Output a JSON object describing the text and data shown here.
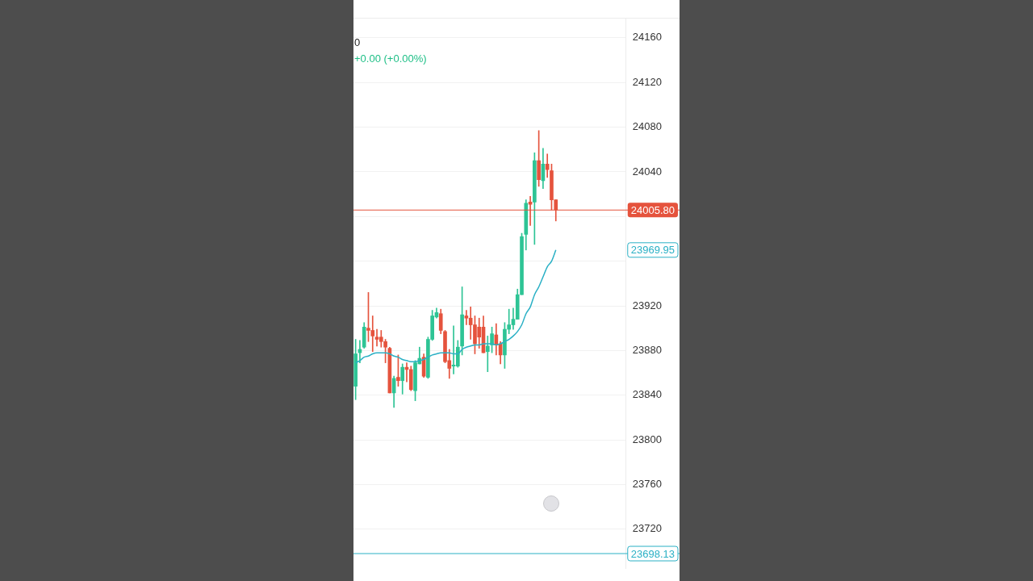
{
  "chart_data": {
    "type": "candlestick",
    "categories": [
      null,
      null,
      null,
      null,
      null,
      null,
      null,
      null,
      null,
      null,
      null,
      null,
      null,
      null,
      null,
      null,
      null,
      null,
      null,
      null,
      null,
      null,
      null,
      null,
      null,
      null,
      null,
      null,
      null,
      null,
      null,
      null,
      null,
      null,
      null,
      null,
      null,
      null,
      null,
      null,
      null,
      null,
      null,
      null,
      null,
      null,
      null,
      null,
      null,
      null,
      null,
      null,
      null,
      null,
      null,
      null,
      null,
      null,
      null,
      null,
      null,
      null,
      null,
      null
    ],
    "ohlc": [
      [
        23848,
        23890,
        23836,
        23877
      ],
      [
        23878,
        23889,
        23869,
        23881
      ],
      [
        23883,
        23905,
        23882,
        23901
      ],
      [
        23900,
        23932,
        23888,
        23898
      ],
      [
        23898,
        23911,
        23879,
        23893
      ],
      [
        23892,
        23899,
        23884,
        23890
      ],
      [
        23892,
        23898,
        23883,
        23888
      ],
      [
        23888,
        23890,
        23869,
        23883
      ],
      [
        23882,
        23883,
        23842,
        23842
      ],
      [
        23842,
        23857,
        23829,
        23855
      ],
      [
        23856,
        23876,
        23848,
        23853
      ],
      [
        23853,
        23868,
        23841,
        23865
      ],
      [
        23865,
        23869,
        23852,
        23863
      ],
      [
        23863,
        23866,
        23844,
        23845
      ],
      [
        23844,
        23871,
        23835,
        23869
      ],
      [
        23868,
        23883,
        23868,
        23873
      ],
      [
        23874,
        23877,
        23856,
        23857
      ],
      [
        23856,
        23892,
        23855,
        23890
      ],
      [
        23890,
        23916,
        23889,
        23911
      ],
      [
        23910,
        23918,
        23909,
        23914
      ],
      [
        23913,
        23917,
        23895,
        23898
      ],
      [
        23897,
        23898,
        23869,
        23870
      ],
      [
        23871,
        23881,
        23855,
        23864
      ],
      [
        23866,
        23902,
        23859,
        23867
      ],
      [
        23866,
        23889,
        23865,
        23883
      ],
      [
        23884,
        23937,
        23876,
        23912
      ],
      [
        23911,
        23916,
        23903,
        23909
      ],
      [
        23909,
        23919,
        23890,
        23903
      ],
      [
        23903,
        23911,
        23877,
        23886
      ],
      [
        23901,
        23909,
        23882,
        23892
      ],
      [
        23901,
        23911,
        23878,
        23878
      ],
      [
        23879,
        23893,
        23861,
        23884
      ],
      [
        23885,
        23901,
        23878,
        23895
      ],
      [
        23894,
        23904,
        23876,
        23885
      ],
      [
        23886,
        23888,
        23868,
        23876
      ],
      [
        23876,
        23905,
        23864,
        23899
      ],
      [
        23899,
        23917,
        23895,
        23903
      ],
      [
        23903,
        23918,
        23899,
        23908
      ],
      [
        23908,
        23935,
        23908,
        23930
      ],
      [
        23930,
        23985,
        23930,
        23982
      ],
      [
        23984,
        24015,
        23970,
        24012
      ],
      [
        24013,
        24018,
        23992,
        24011
      ],
      [
        24013,
        24057,
        23975,
        24050
      ],
      [
        24050,
        24077,
        24027,
        24033
      ],
      [
        24032,
        24061,
        24025,
        24047
      ],
      [
        24047,
        24056,
        24035,
        24042
      ],
      [
        24041,
        24047,
        24006,
        24015
      ],
      [
        24015,
        24015,
        23996,
        24006
      ],
      null,
      null,
      null,
      null,
      null,
      null,
      null,
      null,
      null,
      null,
      null,
      null,
      null,
      null,
      null,
      null
    ],
    "colors": [
      "#2ec495",
      "#2ec495",
      "#2ec495",
      "#e5533d",
      "#e5533d",
      "#e5533d",
      "#e5533d",
      "#e5533d",
      "#e5533d",
      "#2ec495",
      "#e5533d",
      "#2ec495",
      "#e5533d",
      "#e5533d",
      "#2ec495",
      "#2ec495",
      "#e5533d",
      "#2ec495",
      "#2ec495",
      "#2ec495",
      "#e5533d",
      "#e5533d",
      "#e5533d",
      "#2ec495",
      "#2ec495",
      "#2ec495",
      "#e5533d",
      "#e5533d",
      "#e5533d",
      "#e5533d",
      "#e5533d",
      "#2ec495",
      "#2ec495",
      "#e5533d",
      "#e5533d",
      "#2ec495",
      "#2ec495",
      "#2ec495",
      "#2ec495",
      "#2ec495",
      "#2ec495",
      "#e5533d",
      "#2ec495",
      "#e5533d",
      "#2ec495",
      "#e5533d",
      "#e5533d",
      "#e5533d",
      null,
      null,
      null,
      null,
      null,
      null,
      null,
      null,
      null,
      null,
      null,
      null,
      null,
      null,
      null,
      null
    ],
    "series": [
      {
        "type": "line",
        "color": "#2ab0c5",
        "values": [
          23869,
          23871,
          23874,
          23875,
          23877,
          23878,
          23878,
          23878,
          23877,
          23875,
          23874,
          23872,
          23871,
          23870,
          23870,
          23871,
          23872,
          23874,
          23876,
          23877,
          23878,
          23878,
          23878,
          23877,
          23877,
          23881,
          23883,
          23884,
          23885,
          23885,
          23886,
          23886,
          23886,
          23885,
          23886,
          23888,
          23890,
          23893,
          23897,
          23903,
          23913,
          23919,
          23930,
          23937,
          23946,
          23955,
          23960,
          23970,
          null,
          null,
          null,
          null,
          null,
          null,
          null,
          null,
          null,
          null,
          null,
          null,
          null,
          null,
          null,
          null
        ]
      }
    ],
    "ylim": [
      23685,
      24178
    ],
    "yticks": [
      23720,
      23760,
      23800,
      23840,
      23880,
      23920,
      {
        "value": 23960,
        "label": null
      },
      {
        "value": 24000,
        "label": null
      },
      24040,
      24080,
      24120,
      24160
    ],
    "grid": "y",
    "legend": false,
    "tick_labels": "y",
    "marker": "none",
    "line_style": "solid",
    "ref_lines": [
      {
        "axis": "y",
        "value": 24005.8,
        "label": "24005.80",
        "color": "#e5533d"
      },
      {
        "axis": "y",
        "value": 23698.13,
        "label": "23698.13",
        "color": "#2ab0c5"
      }
    ],
    "annotations": [
      "0",
      "+0.00 (+0.00%)",
      "23969.95"
    ]
  }
}
